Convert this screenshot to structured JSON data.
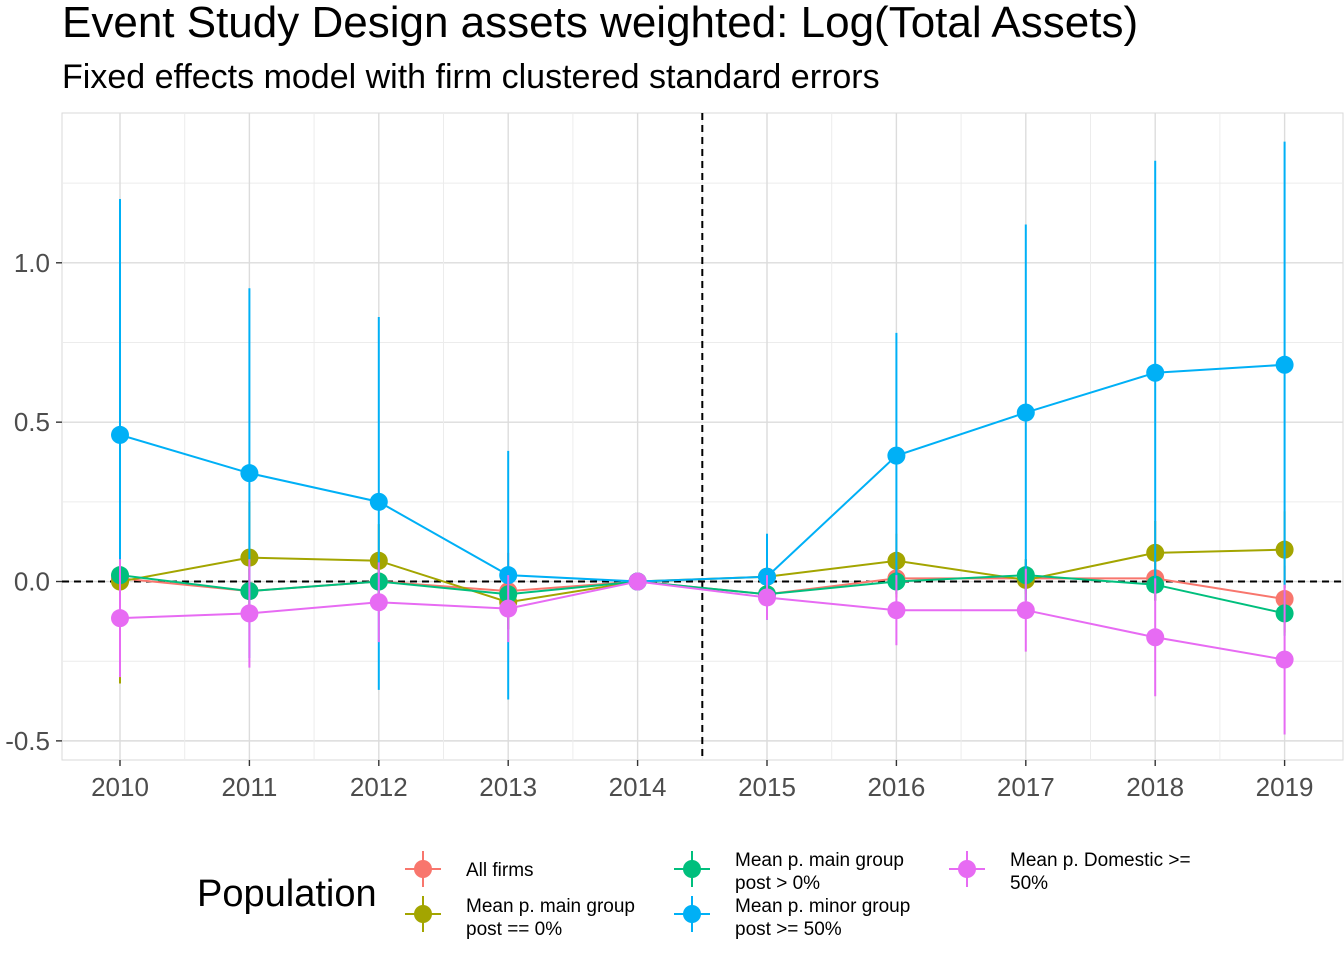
{
  "title": "Event Study Design assets weighted: Log(Total Assets)",
  "subtitle": "Fixed effects model with firm clustered standard errors",
  "chart_data": {
    "type": "line",
    "title": "Event Study Design assets weighted: Log(Total Assets)",
    "subtitle": "Fixed effects model with firm clustered standard errors",
    "xlabel": "",
    "ylabel": "",
    "x": [
      "2010",
      "2011",
      "2012",
      "2013",
      "2014",
      "2015",
      "2016",
      "2017",
      "2018",
      "2019"
    ],
    "ylim": [
      -0.56,
      1.47
    ],
    "yticks": [
      -0.5,
      0.0,
      0.5,
      1.0
    ],
    "ytick_labels": [
      "-0.5",
      "0.0",
      "0.5",
      "1.0"
    ],
    "grid": true,
    "hline": 0,
    "vline_between": [
      "2014",
      "2015"
    ],
    "legend": {
      "title": "Population",
      "position": "bottom"
    },
    "series": [
      {
        "name": "All firms",
        "color": "#F8766D",
        "values": [
          0.01,
          -0.03,
          0.0,
          -0.03,
          0.0,
          -0.04,
          0.01,
          0.01,
          0.01,
          -0.055
        ],
        "lower": [
          -0.1,
          -0.12,
          -0.08,
          -0.15,
          0.0,
          -0.1,
          -0.05,
          -0.04,
          -0.06,
          -0.16
        ],
        "upper": [
          0.12,
          0.06,
          0.08,
          0.09,
          0.0,
          0.02,
          0.07,
          0.06,
          0.08,
          0.05
        ]
      },
      {
        "name": "Mean p. main group\npost == 0%",
        "color": "#A3A500",
        "values": [
          0.0,
          0.075,
          0.065,
          -0.065,
          0.0,
          0.015,
          0.065,
          0.005,
          0.09,
          0.1
        ],
        "lower": [
          -0.32,
          -0.1,
          -0.05,
          -0.15,
          0.0,
          -0.05,
          -0.02,
          -0.06,
          -0.01,
          -0.02
        ],
        "upper": [
          0.32,
          0.25,
          0.18,
          0.02,
          0.0,
          0.08,
          0.15,
          0.07,
          0.19,
          0.22
        ]
      },
      {
        "name": "Mean p. main group\npost > 0%",
        "color": "#00BF7D",
        "values": [
          0.02,
          -0.03,
          0.0,
          -0.04,
          0.0,
          -0.04,
          0.0,
          0.02,
          -0.01,
          -0.1
        ],
        "lower": [
          -0.05,
          -0.1,
          -0.06,
          -0.1,
          0.0,
          -0.08,
          -0.04,
          -0.03,
          -0.06,
          -0.17
        ],
        "upper": [
          0.09,
          0.04,
          0.06,
          0.02,
          0.0,
          0.0,
          0.04,
          0.07,
          0.04,
          -0.03
        ]
      },
      {
        "name": "Mean p. minor group\npost >= 50%",
        "color": "#00B0F6",
        "values": [
          0.46,
          0.34,
          0.25,
          0.02,
          0.0,
          0.015,
          0.395,
          0.53,
          0.655,
          0.68
        ],
        "lower": [
          -0.28,
          -0.24,
          -0.34,
          -0.37,
          0.0,
          -0.12,
          0.01,
          -0.06,
          -0.01,
          -0.02
        ],
        "upper": [
          1.2,
          0.92,
          0.83,
          0.41,
          0.0,
          0.15,
          0.78,
          1.12,
          1.32,
          1.38
        ]
      },
      {
        "name": "Mean p. Domestic >=\n50%",
        "color": "#E76BF3",
        "values": [
          -0.115,
          -0.1,
          -0.065,
          -0.085,
          0.0,
          -0.05,
          -0.09,
          -0.09,
          -0.175,
          -0.245
        ],
        "lower": [
          -0.3,
          -0.27,
          -0.19,
          -0.19,
          0.0,
          -0.12,
          -0.2,
          -0.22,
          -0.36,
          -0.48
        ],
        "upper": [
          0.07,
          0.07,
          0.06,
          0.02,
          0.0,
          0.02,
          0.02,
          0.04,
          0.01,
          -0.01
        ]
      }
    ]
  }
}
